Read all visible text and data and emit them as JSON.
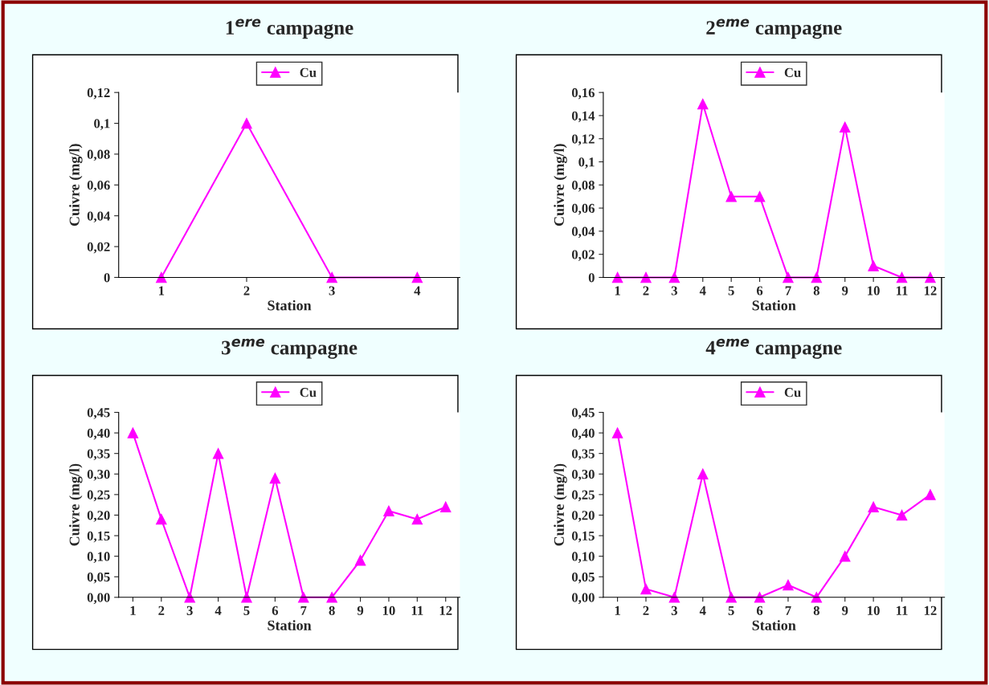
{
  "chart_data": [
    {
      "type": "line",
      "title": "1$^{ere}$ campagne",
      "xlabel": "Station",
      "ylabel": "Cuivre (mg/l)",
      "categories": [
        "1",
        "2",
        "3",
        "4"
      ],
      "series": [
        {
          "name": "Cu",
          "color": "#ff00ff",
          "values": [
            0,
            0.1,
            0,
            0
          ]
        }
      ],
      "ylim": [
        0,
        0.12
      ],
      "yticks": [
        0,
        {
          "value": 0.02,
          "label": "0,02"
        },
        {
          "value": 0.04,
          "label": "0,04"
        },
        {
          "value": 0.06,
          "label": "0,06"
        },
        {
          "value": 0.08,
          "label": "0,08"
        },
        {
          "value": 0.1,
          "label": "0,1"
        },
        {
          "value": 0.12,
          "label": "0,12"
        }
      ],
      "legend": "top",
      "marker": "triangle",
      "line_style": "solid"
    },
    {
      "type": "line",
      "title": "2$^{eme}$ campagne",
      "xlabel": "Station",
      "ylabel": "Cuivre (mg/l)",
      "categories": [
        "1",
        "2",
        "3",
        "4",
        "5",
        "6",
        "7",
        "8",
        "9",
        "10",
        "11",
        "12"
      ],
      "series": [
        {
          "name": "Cu",
          "color": "#ff00ff",
          "values": [
            0,
            0,
            0,
            0.15,
            0.07,
            0.07,
            0,
            0,
            0.13,
            0.01,
            0,
            0
          ]
        }
      ],
      "ylim": [
        0,
        0.16
      ],
      "yticks": [
        0,
        {
          "value": 0.02,
          "label": "0,02"
        },
        {
          "value": 0.04,
          "label": "0,04"
        },
        {
          "value": 0.06,
          "label": "0,06"
        },
        {
          "value": 0.08,
          "label": "0,08"
        },
        {
          "value": 0.1,
          "label": "0,1"
        },
        {
          "value": 0.12,
          "label": "0,12"
        },
        {
          "value": 0.14,
          "label": "0,14"
        },
        {
          "value": 0.16,
          "label": "0,16"
        }
      ],
      "legend": "top",
      "marker": "triangle",
      "line_style": "solid"
    },
    {
      "type": "line",
      "title": "3$^{eme}$ campagne",
      "xlabel": "Station",
      "ylabel": "Cuivre (mg/l)",
      "categories": [
        "1",
        "2",
        "3",
        "4",
        "5",
        "6",
        "7",
        "8",
        "9",
        "10",
        "11",
        "12"
      ],
      "series": [
        {
          "name": "Cu",
          "color": "#ff00ff",
          "values": [
            0.4,
            0.19,
            0,
            0.35,
            0,
            0.29,
            0,
            0,
            0.09,
            0.21,
            0.19,
            0.22
          ]
        }
      ],
      "ylim": [
        0,
        0.45
      ],
      "yticks": [
        {
          "value": 0,
          "label": "0,00"
        },
        {
          "value": 0.05,
          "label": "0,05"
        },
        {
          "value": 0.1,
          "label": "0,10"
        },
        {
          "value": 0.15,
          "label": "0,15"
        },
        {
          "value": 0.2,
          "label": "0,20"
        },
        {
          "value": 0.25,
          "label": "0,25"
        },
        {
          "value": 0.3,
          "label": "0,30"
        },
        {
          "value": 0.35,
          "label": "0,35"
        },
        {
          "value": 0.4,
          "label": "0,40"
        },
        {
          "value": 0.45,
          "label": "0,45"
        }
      ],
      "legend": "top",
      "marker": "triangle",
      "line_style": "solid"
    },
    {
      "type": "line",
      "title": "4$^{eme}$ campagne",
      "xlabel": "Station",
      "ylabel": "Cuivre (mg/l)",
      "categories": [
        "1",
        "2",
        "3",
        "4",
        "5",
        "6",
        "7",
        "8",
        "9",
        "10",
        "11",
        "12"
      ],
      "series": [
        {
          "name": "Cu",
          "color": "#ff00ff",
          "values": [
            0.4,
            0.02,
            0,
            0.3,
            0,
            0,
            0.03,
            0,
            0.1,
            0.22,
            0.2,
            0.25
          ]
        }
      ],
      "ylim": [
        0,
        0.45
      ],
      "yticks": [
        {
          "value": 0,
          "label": "0,00"
        },
        {
          "value": 0.05,
          "label": "0,05"
        },
        {
          "value": 0.1,
          "label": "0,10"
        },
        {
          "value": 0.15,
          "label": "0,15"
        },
        {
          "value": 0.2,
          "label": "0,20"
        },
        {
          "value": 0.25,
          "label": "0,25"
        },
        {
          "value": 0.3,
          "label": "0,30"
        },
        {
          "value": 0.35,
          "label": "0,35"
        },
        {
          "value": 0.4,
          "label": "0,40"
        },
        {
          "value": 0.45,
          "label": "0,45"
        }
      ],
      "legend": "top",
      "marker": "triangle",
      "line_style": "solid"
    }
  ]
}
